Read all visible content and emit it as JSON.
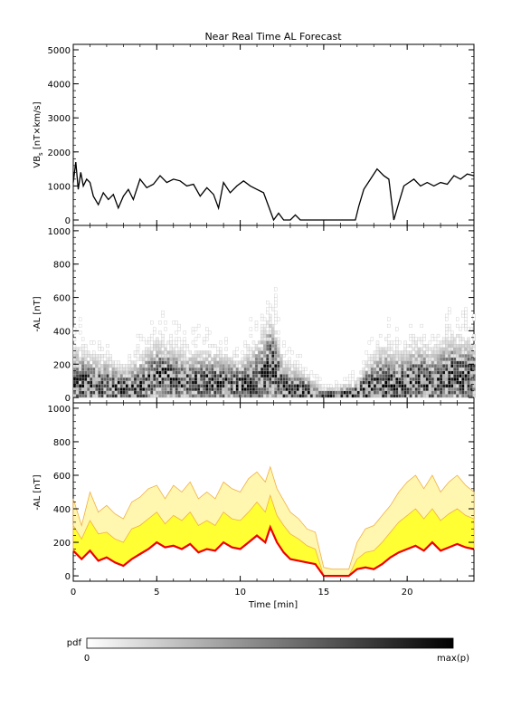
{
  "title": "Near Real Time AL Forecast",
  "panels": [
    {
      "ylabel_main": "VB",
      "ylabel_sub": "s",
      "ylabel_rest": " [nT×km/s]"
    },
    {
      "ylabel": "-AL [nT]"
    },
    {
      "ylabel": "-AL [nT]"
    }
  ],
  "colorbar": {
    "label": "pdf",
    "min_label": "0",
    "max_label": "max(p)"
  },
  "chart_data": [
    {
      "type": "line",
      "ylim": [
        0,
        5000
      ],
      "xlim": [
        0,
        24
      ],
      "yticks": [
        0,
        1000,
        2000,
        3000,
        4000,
        5000
      ],
      "series": [
        {
          "x": [
            0,
            0.15,
            0.3,
            0.45,
            0.6,
            0.8,
            1.0,
            1.2,
            1.5,
            1.8,
            2.1,
            2.4,
            2.7,
            3.0,
            3.3,
            3.6,
            4.0,
            4.4,
            4.8,
            5.2,
            5.6,
            6.0,
            6.4,
            6.8,
            7.2,
            7.6,
            8.0,
            8.4,
            8.7,
            9.0,
            9.4,
            9.8,
            10.2,
            10.6,
            11.0,
            11.4,
            11.7,
            12.0,
            12.3,
            12.6,
            13.0,
            13.3,
            13.6,
            14.0,
            14.5,
            15.0,
            15.5,
            16.0,
            16.5,
            16.9,
            17.1,
            17.4,
            17.8,
            18.2,
            18.6,
            18.9,
            19.2,
            19.5,
            19.8,
            20.1,
            20.4,
            20.8,
            21.2,
            21.6,
            22.0,
            22.4,
            22.8,
            23.2,
            23.6,
            24.0
          ],
          "y": [
            1100,
            1700,
            900,
            1400,
            1000,
            1200,
            1100,
            700,
            450,
            800,
            600,
            750,
            350,
            700,
            900,
            600,
            1200,
            950,
            1050,
            1300,
            1100,
            1200,
            1150,
            1000,
            1050,
            700,
            950,
            750,
            350,
            1100,
            800,
            1000,
            1150,
            1000,
            900,
            800,
            400,
            0,
            200,
            0,
            0,
            150,
            0,
            0,
            0,
            0,
            0,
            0,
            0,
            0,
            400,
            900,
            1200,
            1500,
            1300,
            1200,
            0,
            500,
            1000,
            1100,
            1200,
            1000,
            1100,
            1000,
            1100,
            1050,
            1300,
            1200,
            1350,
            1300
          ]
        }
      ]
    },
    {
      "type": "heatmap",
      "ylim": [
        0,
        1000
      ],
      "xlim": [
        0,
        24
      ],
      "yticks": [
        0,
        200,
        400,
        600,
        800,
        1000
      ],
      "anchor_x": [
        0,
        1,
        2,
        3,
        4,
        5,
        6,
        7,
        8,
        9,
        10,
        11,
        11.8,
        12.5,
        13.5,
        15,
        16.8,
        17.5,
        18.5,
        19.5,
        20.5,
        21.5,
        22.5,
        24
      ],
      "mode_y": [
        80,
        70,
        60,
        40,
        60,
        120,
        100,
        80,
        90,
        70,
        60,
        100,
        180,
        50,
        30,
        0,
        10,
        40,
        80,
        60,
        100,
        80,
        120,
        100
      ],
      "spread": [
        150,
        120,
        110,
        90,
        130,
        150,
        130,
        120,
        130,
        120,
        110,
        160,
        220,
        110,
        90,
        30,
        50,
        110,
        160,
        140,
        150,
        140,
        170,
        160
      ]
    },
    {
      "type": "area",
      "ylim": [
        0,
        1000
      ],
      "xlim": [
        0,
        24
      ],
      "yticks": [
        0,
        200,
        400,
        600,
        800,
        1000
      ],
      "x": [
        0,
        0.5,
        1,
        1.5,
        2,
        2.5,
        3,
        3.5,
        4,
        4.5,
        5,
        5.5,
        6,
        6.5,
        7,
        7.5,
        8,
        8.5,
        9,
        9.5,
        10,
        10.5,
        11,
        11.5,
        11.8,
        12.2,
        12.6,
        13,
        13.5,
        14,
        14.5,
        15,
        15.5,
        16,
        16.5,
        17,
        17.5,
        18,
        18.5,
        19,
        19.5,
        20,
        20.5,
        21,
        21.5,
        22,
        22.5,
        23,
        23.5,
        24
      ],
      "median": [
        150,
        100,
        150,
        90,
        110,
        80,
        60,
        100,
        130,
        160,
        200,
        170,
        180,
        160,
        190,
        140,
        160,
        150,
        200,
        170,
        160,
        200,
        240,
        200,
        290,
        200,
        140,
        100,
        90,
        80,
        70,
        0,
        0,
        0,
        0,
        40,
        50,
        40,
        70,
        110,
        140,
        160,
        180,
        150,
        200,
        150,
        170,
        190,
        170,
        160
      ],
      "inner": [
        300,
        220,
        330,
        250,
        260,
        220,
        200,
        280,
        300,
        340,
        380,
        310,
        360,
        330,
        380,
        300,
        330,
        300,
        380,
        340,
        330,
        380,
        440,
        380,
        480,
        360,
        300,
        250,
        220,
        180,
        160,
        0,
        0,
        0,
        0,
        100,
        140,
        150,
        200,
        260,
        320,
        360,
        400,
        340,
        400,
        330,
        370,
        400,
        360,
        340
      ],
      "outer": [
        460,
        300,
        500,
        380,
        420,
        370,
        340,
        440,
        470,
        520,
        540,
        460,
        540,
        500,
        560,
        460,
        500,
        460,
        560,
        520,
        500,
        580,
        620,
        560,
        650,
        520,
        450,
        380,
        340,
        280,
        260,
        50,
        40,
        40,
        40,
        200,
        280,
        300,
        360,
        420,
        500,
        560,
        600,
        520,
        600,
        500,
        560,
        600,
        540,
        500
      ]
    }
  ],
  "axis": {
    "xlabel": "Time [min]",
    "xticks": [
      0,
      5,
      10,
      15,
      20
    ]
  },
  "colors": {
    "line": "#000000",
    "median": "#ee0000",
    "inner": "#ffff33",
    "outer": "#fff6b0",
    "outer_edge": "#f0b040"
  }
}
